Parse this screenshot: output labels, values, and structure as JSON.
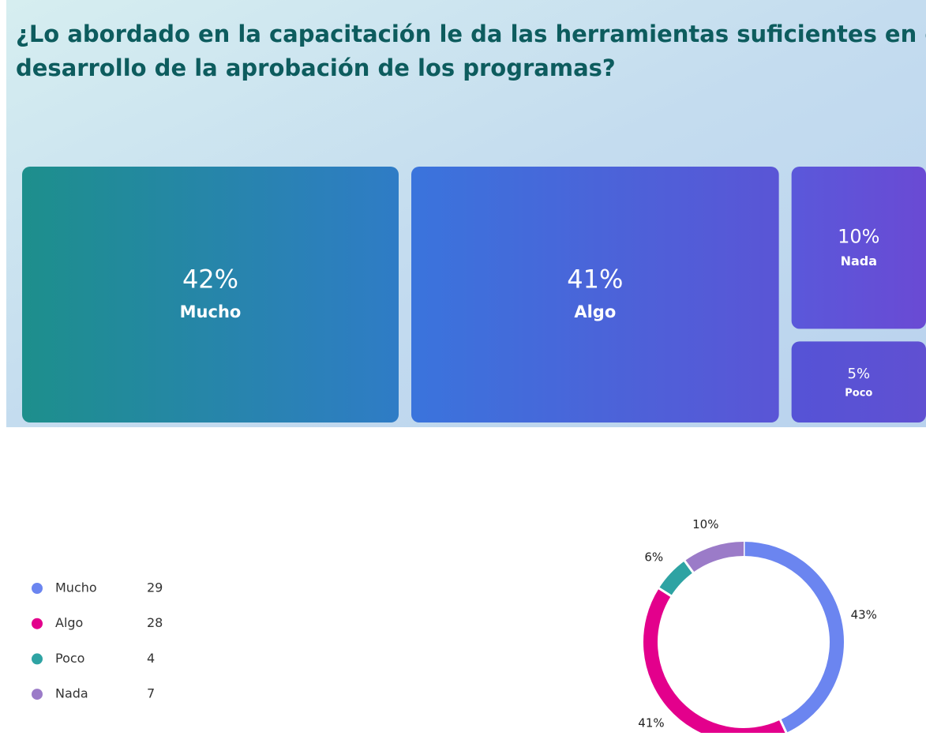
{
  "chart_data": [
    {
      "type": "treemap",
      "title": "¿Lo abordado en la capacitación le da las herramientas suficientes en el desarrollo de la aprobación de los programas?",
      "categories": [
        "Mucho",
        "Algo",
        "Nada",
        "Poco"
      ],
      "values": [
        42,
        41,
        10,
        5
      ],
      "value_labels": [
        "42%",
        "41%",
        "10%",
        "5%"
      ],
      "colors": [
        [
          "#1d8f8c",
          "#2f7cc6"
        ],
        [
          "#3a74dc",
          "#5a55d6"
        ],
        [
          "#5a58da",
          "#6a4ad4"
        ],
        [
          "#5553d6",
          "#6050d2"
        ]
      ]
    },
    {
      "type": "pie",
      "categories": [
        "Mucho",
        "Algo",
        "Poco",
        "Nada"
      ],
      "counts": [
        29,
        28,
        4,
        7
      ],
      "values": [
        43,
        41,
        6,
        10
      ],
      "value_labels": [
        "43%",
        "41%",
        "6%",
        "10%"
      ],
      "colors": [
        "#6b85f0",
        "#e3008c",
        "#2ea3a3",
        "#9b7bc8"
      ],
      "donut": true
    }
  ]
}
